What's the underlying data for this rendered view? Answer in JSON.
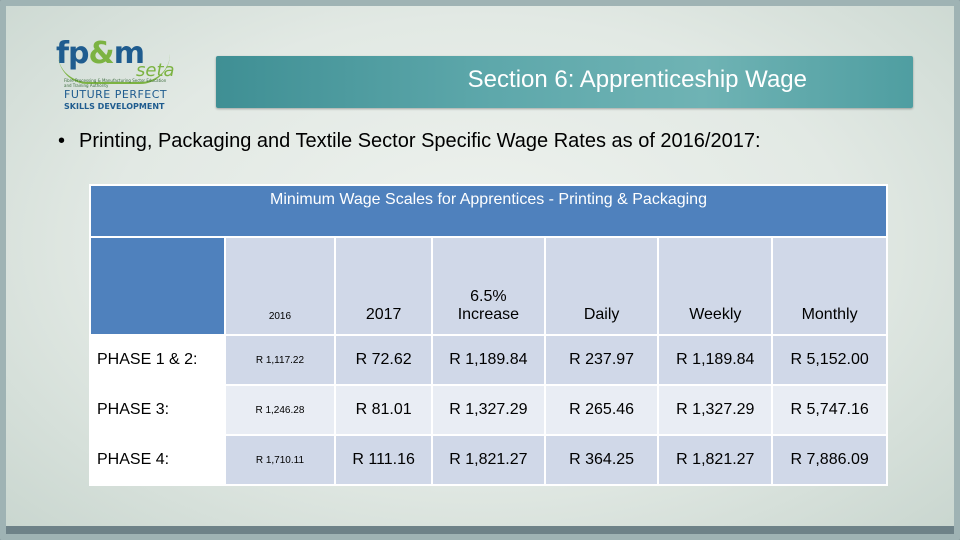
{
  "logo": {
    "brand": "fp",
    "amp": "&",
    "brand_end": "m",
    "seta": "seta",
    "tagline": "Fibre Processing & Manufacturing Sector Education and Training Authority",
    "future_perfect": "FUTURE PERFECT",
    "skills_development": "SKILLS DEVELOPMENT"
  },
  "banner": {
    "title": "Section 6: Apprenticeship Wage"
  },
  "bullet": {
    "text": "Printing, Packaging and Textile Sector Specific Wage Rates as of 2016/2017:"
  },
  "table": {
    "caption": "Minimum Wage Scales for Apprentices - Printing & Packaging",
    "headers": [
      "",
      "2016",
      "2017",
      "6.5% Increase",
      "Daily",
      "Weekly",
      "Monthly"
    ],
    "header_increase_line1": "6.5%",
    "header_increase_line2": "Increase",
    "rows": [
      {
        "phase": "PHASE 1 & 2:",
        "v2016": "R 1,117.22",
        "v2017": "R 72.62",
        "increase": "R 1,189.84",
        "daily": "R 237.97",
        "weekly": "R 1,189.84",
        "monthly": "R 5,152.00"
      },
      {
        "phase": "PHASE 3:",
        "v2016": "R 1,246.28",
        "v2017": "R 81.01",
        "increase": "R 1,327.29",
        "daily": "R 265.46",
        "weekly": "R 1,327.29",
        "monthly": "R 5,747.16"
      },
      {
        "phase": "PHASE 4:",
        "v2016": "R 1,710.11",
        "v2017": "R 111.16",
        "increase": "R 1,821.27",
        "daily": "R 364.25",
        "weekly": "R 1,821.27",
        "monthly": "R 7,886.09"
      }
    ]
  },
  "colors": {
    "banner": "#5ea8ab",
    "table_header": "#4f81bd",
    "table_band_dark": "#d0d8e8",
    "table_band_light": "#e9edf4"
  }
}
